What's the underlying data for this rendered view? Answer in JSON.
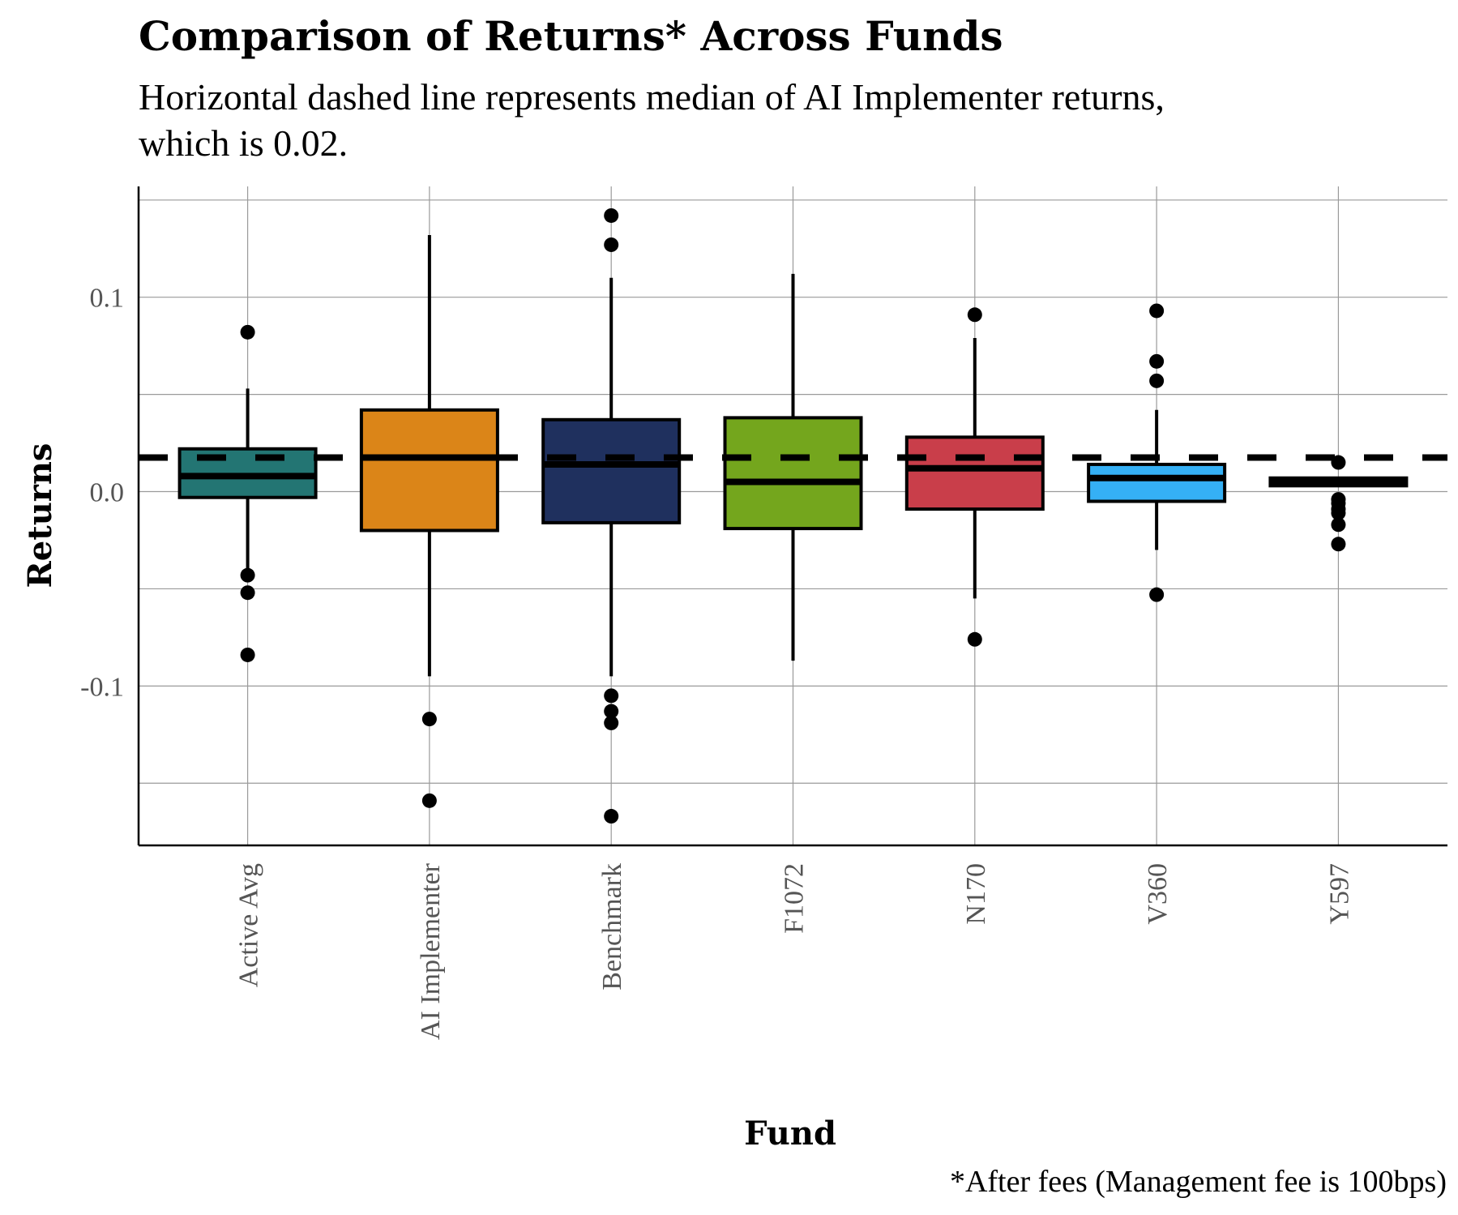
{
  "chart_data": {
    "type": "box",
    "title": "Comparison of Returns* Across Funds",
    "subtitle_lines": [
      "Horizontal dashed line represents median of AI Implementer returns,",
      "which is 0.02."
    ],
    "xlabel": "Fund",
    "ylabel": "Returns",
    "caption": "*After fees (Management fee is 100bps)",
    "ylim": [
      -0.182,
      0.157
    ],
    "y_ticks": [
      -0.1,
      0.0,
      0.1
    ],
    "y_tick_labels": [
      "-0.1",
      "0.0",
      "0.1"
    ],
    "y_minor_grid": [
      -0.15,
      -0.05,
      0.05,
      0.15
    ],
    "reference_line": {
      "value": 0.0175,
      "style": "dashed"
    },
    "grid": true,
    "categories": [
      "Active Avg",
      "AI Implementer",
      "Benchmark",
      "F1072",
      "N170",
      "V360",
      "Y597"
    ],
    "boxes": [
      {
        "category": "Active Avg",
        "color": "#237573",
        "q1": -0.003,
        "median": 0.008,
        "q3": 0.022,
        "whisker_low": -0.04,
        "whisker_high": 0.053,
        "outliers": [
          0.082,
          -0.043,
          -0.052,
          -0.084
        ]
      },
      {
        "category": "AI Implementer",
        "color": "#DB8518",
        "q1": -0.02,
        "median": 0.0175,
        "q3": 0.042,
        "whisker_low": -0.095,
        "whisker_high": 0.132,
        "outliers": [
          -0.117,
          -0.159
        ]
      },
      {
        "category": "Benchmark",
        "color": "#1F305E",
        "q1": -0.016,
        "median": 0.014,
        "q3": 0.037,
        "whisker_low": -0.095,
        "whisker_high": 0.11,
        "outliers": [
          0.142,
          0.127,
          -0.105,
          -0.113,
          -0.119,
          -0.167
        ]
      },
      {
        "category": "F1072",
        "color": "#74A61D",
        "q1": -0.019,
        "median": 0.005,
        "q3": 0.038,
        "whisker_low": -0.087,
        "whisker_high": 0.112,
        "outliers": []
      },
      {
        "category": "N170",
        "color": "#C93E4A",
        "q1": -0.009,
        "median": 0.012,
        "q3": 0.028,
        "whisker_low": -0.055,
        "whisker_high": 0.079,
        "outliers": [
          0.091,
          -0.076
        ]
      },
      {
        "category": "V360",
        "color": "#35B0F5",
        "q1": -0.005,
        "median": 0.007,
        "q3": 0.014,
        "whisker_low": -0.03,
        "whisker_high": 0.042,
        "outliers": [
          0.093,
          0.067,
          0.057,
          -0.053
        ]
      },
      {
        "category": "Y597",
        "color": "#1a1a1a",
        "q1": 0.003,
        "median": 0.005,
        "q3": 0.007,
        "whisker_low": 0.003,
        "whisker_high": 0.007,
        "outliers": [
          0.015,
          -0.004,
          -0.006,
          -0.009,
          -0.011,
          -0.017,
          -0.027
        ]
      }
    ]
  }
}
